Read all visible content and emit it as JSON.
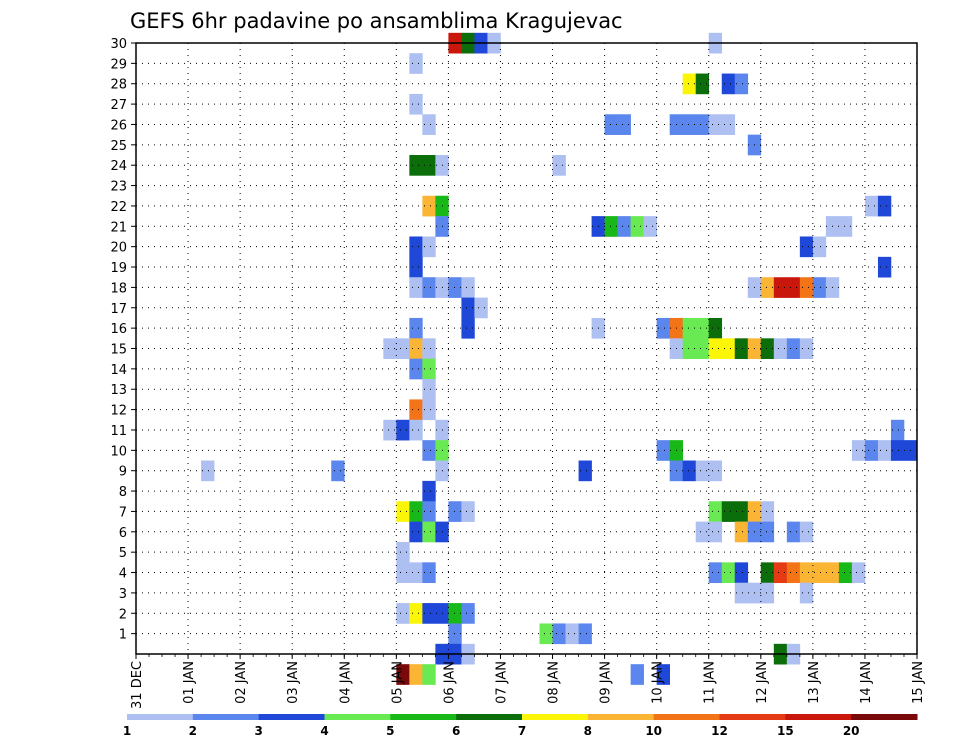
{
  "chart_data": {
    "type": "heatmap",
    "title": "GEFS 6hr padavine po ansamblima Kragujevac",
    "xlabel": "",
    "ylabel": "",
    "x_ticks": [
      "31 DEC",
      "01 JAN",
      "02 JAN",
      "03 JAN",
      "04 JAN",
      "05 JAN",
      "06 JAN",
      "07 JAN",
      "08 JAN",
      "09 JAN",
      "10 JAN",
      "11 JAN",
      "12 JAN",
      "13 JAN",
      "14 JAN",
      "15 JAN"
    ],
    "y_ticks": [
      "1",
      "2",
      "3",
      "4",
      "5",
      "6",
      "7",
      "8",
      "9",
      "10",
      "11",
      "12",
      "13",
      "14",
      "15",
      "16",
      "17",
      "18",
      "19",
      "20",
      "21",
      "22",
      "23",
      "24",
      "25",
      "26",
      "27",
      "28",
      "29",
      "30"
    ],
    "x_unit": "6-hour step (4 per day, 60 steps)",
    "grid": true,
    "levels": [
      {
        "label": "1",
        "color": "#aebff2"
      },
      {
        "label": "2",
        "color": "#5b86ee"
      },
      {
        "label": "3",
        "color": "#1f48d9"
      },
      {
        "label": "4",
        "color": "#69ea52"
      },
      {
        "label": "5",
        "color": "#18b818"
      },
      {
        "label": "6",
        "color": "#0b6e0b"
      },
      {
        "label": "7",
        "color": "#fbf608"
      },
      {
        "label": "8",
        "color": "#fbb534"
      },
      {
        "label": "10",
        "color": "#f37417"
      },
      {
        "label": "12",
        "color": "#e43b14"
      },
      {
        "label": "15",
        "color": "#c9170c"
      },
      {
        "label": "20",
        "color": "#7a0a0a"
      }
    ],
    "cells": [
      {
        "m": 30,
        "t": 24,
        "c": 10
      },
      {
        "m": 30,
        "t": 25,
        "c": 5
      },
      {
        "m": 30,
        "t": 26,
        "c": 2
      },
      {
        "m": 30,
        "t": 27,
        "c": 0
      },
      {
        "m": 30,
        "t": 44,
        "c": 0
      },
      {
        "m": 29,
        "t": 21,
        "c": 0
      },
      {
        "m": 28,
        "t": 42,
        "c": 6
      },
      {
        "m": 28,
        "t": 43,
        "c": 5
      },
      {
        "m": 28,
        "t": 45,
        "c": 2
      },
      {
        "m": 28,
        "t": 46,
        "c": 1
      },
      {
        "m": 27,
        "t": 21,
        "c": 0
      },
      {
        "m": 26,
        "t": 22,
        "c": 0
      },
      {
        "m": 26,
        "t": 36,
        "c": 1
      },
      {
        "m": 26,
        "t": 37,
        "c": 1
      },
      {
        "m": 26,
        "t": 41,
        "c": 1
      },
      {
        "m": 26,
        "t": 42,
        "c": 1
      },
      {
        "m": 26,
        "t": 43,
        "c": 1
      },
      {
        "m": 26,
        "t": 44,
        "c": 0
      },
      {
        "m": 26,
        "t": 45,
        "c": 0
      },
      {
        "m": 25,
        "t": 47,
        "c": 1
      },
      {
        "m": 24,
        "t": 21,
        "c": 5
      },
      {
        "m": 24,
        "t": 22,
        "c": 5
      },
      {
        "m": 24,
        "t": 23,
        "c": 0
      },
      {
        "m": 24,
        "t": 32,
        "c": 0
      },
      {
        "m": 22,
        "t": 22,
        "c": 7
      },
      {
        "m": 22,
        "t": 23,
        "c": 4
      },
      {
        "m": 22,
        "t": 56,
        "c": 0
      },
      {
        "m": 22,
        "t": 57,
        "c": 2
      },
      {
        "m": 21,
        "t": 23,
        "c": 1
      },
      {
        "m": 21,
        "t": 35,
        "c": 2
      },
      {
        "m": 21,
        "t": 36,
        "c": 4
      },
      {
        "m": 21,
        "t": 37,
        "c": 1
      },
      {
        "m": 21,
        "t": 38,
        "c": 3
      },
      {
        "m": 21,
        "t": 39,
        "c": 0
      },
      {
        "m": 21,
        "t": 53,
        "c": 0
      },
      {
        "m": 21,
        "t": 54,
        "c": 0
      },
      {
        "m": 20,
        "t": 21,
        "c": 2
      },
      {
        "m": 20,
        "t": 22,
        "c": 0
      },
      {
        "m": 20,
        "t": 51,
        "c": 2
      },
      {
        "m": 20,
        "t": 52,
        "c": 0
      },
      {
        "m": 19,
        "t": 21,
        "c": 2
      },
      {
        "m": 19,
        "t": 57,
        "c": 2
      },
      {
        "m": 18,
        "t": 21,
        "c": 0
      },
      {
        "m": 18,
        "t": 22,
        "c": 1
      },
      {
        "m": 18,
        "t": 23,
        "c": 0
      },
      {
        "m": 18,
        "t": 24,
        "c": 1
      },
      {
        "m": 18,
        "t": 25,
        "c": 0
      },
      {
        "m": 18,
        "t": 47,
        "c": 0
      },
      {
        "m": 18,
        "t": 48,
        "c": 7
      },
      {
        "m": 18,
        "t": 49,
        "c": 10
      },
      {
        "m": 18,
        "t": 50,
        "c": 10
      },
      {
        "m": 18,
        "t": 51,
        "c": 8
      },
      {
        "m": 18,
        "t": 52,
        "c": 1
      },
      {
        "m": 18,
        "t": 53,
        "c": 0
      },
      {
        "m": 17,
        "t": 25,
        "c": 2
      },
      {
        "m": 17,
        "t": 26,
        "c": 0
      },
      {
        "m": 16,
        "t": 21,
        "c": 1
      },
      {
        "m": 16,
        "t": 25,
        "c": 2
      },
      {
        "m": 16,
        "t": 35,
        "c": 0
      },
      {
        "m": 16,
        "t": 40,
        "c": 1
      },
      {
        "m": 16,
        "t": 41,
        "c": 8
      },
      {
        "m": 16,
        "t": 42,
        "c": 3
      },
      {
        "m": 16,
        "t": 43,
        "c": 3
      },
      {
        "m": 16,
        "t": 44,
        "c": 5
      },
      {
        "m": 15,
        "t": 19,
        "c": 0
      },
      {
        "m": 15,
        "t": 20,
        "c": 0
      },
      {
        "m": 15,
        "t": 21,
        "c": 7
      },
      {
        "m": 15,
        "t": 22,
        "c": 0
      },
      {
        "m": 15,
        "t": 41,
        "c": 0
      },
      {
        "m": 15,
        "t": 42,
        "c": 3
      },
      {
        "m": 15,
        "t": 43,
        "c": 3
      },
      {
        "m": 15,
        "t": 44,
        "c": 6
      },
      {
        "m": 15,
        "t": 45,
        "c": 6
      },
      {
        "m": 15,
        "t": 46,
        "c": 5
      },
      {
        "m": 15,
        "t": 47,
        "c": 7
      },
      {
        "m": 15,
        "t": 48,
        "c": 5
      },
      {
        "m": 15,
        "t": 49,
        "c": 0
      },
      {
        "m": 15,
        "t": 50,
        "c": 1
      },
      {
        "m": 15,
        "t": 51,
        "c": 0
      },
      {
        "m": 14,
        "t": 21,
        "c": 1
      },
      {
        "m": 14,
        "t": 22,
        "c": 3
      },
      {
        "m": 13,
        "t": 22,
        "c": 0
      },
      {
        "m": 12,
        "t": 21,
        "c": 8
      },
      {
        "m": 12,
        "t": 22,
        "c": 0
      },
      {
        "m": 11,
        "t": 19,
        "c": 0
      },
      {
        "m": 11,
        "t": 20,
        "c": 2
      },
      {
        "m": 11,
        "t": 21,
        "c": 0
      },
      {
        "m": 11,
        "t": 23,
        "c": 0
      },
      {
        "m": 11,
        "t": 58,
        "c": 1
      },
      {
        "m": 10,
        "t": 22,
        "c": 1
      },
      {
        "m": 10,
        "t": 23,
        "c": 3
      },
      {
        "m": 10,
        "t": 40,
        "c": 1
      },
      {
        "m": 10,
        "t": 41,
        "c": 4
      },
      {
        "m": 10,
        "t": 55,
        "c": 0
      },
      {
        "m": 10,
        "t": 56,
        "c": 1
      },
      {
        "m": 10,
        "t": 57,
        "c": 0
      },
      {
        "m": 10,
        "t": 58,
        "c": 2
      },
      {
        "m": 10,
        "t": 59,
        "c": 2
      },
      {
        "m": 9,
        "t": 5,
        "c": 0
      },
      {
        "m": 9,
        "t": 15,
        "c": 1
      },
      {
        "m": 9,
        "t": 23,
        "c": 0
      },
      {
        "m": 9,
        "t": 34,
        "c": 2
      },
      {
        "m": 9,
        "t": 41,
        "c": 1
      },
      {
        "m": 9,
        "t": 42,
        "c": 2
      },
      {
        "m": 9,
        "t": 43,
        "c": 0
      },
      {
        "m": 9,
        "t": 44,
        "c": 0
      },
      {
        "m": 8,
        "t": 22,
        "c": 2
      },
      {
        "m": 7,
        "t": 20,
        "c": 6
      },
      {
        "m": 7,
        "t": 21,
        "c": 4
      },
      {
        "m": 7,
        "t": 22,
        "c": 1
      },
      {
        "m": 7,
        "t": 24,
        "c": 1
      },
      {
        "m": 7,
        "t": 25,
        "c": 0
      },
      {
        "m": 7,
        "t": 44,
        "c": 3
      },
      {
        "m": 7,
        "t": 45,
        "c": 5
      },
      {
        "m": 7,
        "t": 46,
        "c": 5
      },
      {
        "m": 7,
        "t": 47,
        "c": 7
      },
      {
        "m": 7,
        "t": 48,
        "c": 0
      },
      {
        "m": 6,
        "t": 21,
        "c": 2
      },
      {
        "m": 6,
        "t": 22,
        "c": 3
      },
      {
        "m": 6,
        "t": 23,
        "c": 2
      },
      {
        "m": 6,
        "t": 43,
        "c": 0
      },
      {
        "m": 6,
        "t": 44,
        "c": 0
      },
      {
        "m": 6,
        "t": 46,
        "c": 7
      },
      {
        "m": 6,
        "t": 47,
        "c": 1
      },
      {
        "m": 6,
        "t": 48,
        "c": 1
      },
      {
        "m": 6,
        "t": 50,
        "c": 1
      },
      {
        "m": 6,
        "t": 51,
        "c": 0
      },
      {
        "m": 5,
        "t": 20,
        "c": 0
      },
      {
        "m": 4,
        "t": 20,
        "c": 0
      },
      {
        "m": 4,
        "t": 21,
        "c": 0
      },
      {
        "m": 4,
        "t": 22,
        "c": 1
      },
      {
        "m": 4,
        "t": 44,
        "c": 1
      },
      {
        "m": 4,
        "t": 45,
        "c": 3
      },
      {
        "m": 4,
        "t": 46,
        "c": 2
      },
      {
        "m": 4,
        "t": 48,
        "c": 5
      },
      {
        "m": 4,
        "t": 49,
        "c": 9
      },
      {
        "m": 4,
        "t": 50,
        "c": 8
      },
      {
        "m": 4,
        "t": 51,
        "c": 7
      },
      {
        "m": 4,
        "t": 52,
        "c": 7
      },
      {
        "m": 4,
        "t": 53,
        "c": 7
      },
      {
        "m": 4,
        "t": 54,
        "c": 4
      },
      {
        "m": 4,
        "t": 55,
        "c": 0
      },
      {
        "m": 3,
        "t": 46,
        "c": 0
      },
      {
        "m": 3,
        "t": 47,
        "c": 0
      },
      {
        "m": 3,
        "t": 48,
        "c": 0
      },
      {
        "m": 3,
        "t": 51,
        "c": 0
      },
      {
        "m": 2,
        "t": 20,
        "c": 0
      },
      {
        "m": 2,
        "t": 21,
        "c": 6
      },
      {
        "m": 2,
        "t": 22,
        "c": 2
      },
      {
        "m": 2,
        "t": 23,
        "c": 2
      },
      {
        "m": 2,
        "t": 24,
        "c": 4
      },
      {
        "m": 2,
        "t": 25,
        "c": 1
      },
      {
        "m": 1,
        "t": 24,
        "c": 1
      },
      {
        "m": 1,
        "t": 31,
        "c": 3
      },
      {
        "m": 1,
        "t": 32,
        "c": 1
      },
      {
        "m": 1,
        "t": 33,
        "c": 0
      },
      {
        "m": 1,
        "t": 34,
        "c": 1
      },
      {
        "m": 0,
        "t": 23,
        "c": 2
      },
      {
        "m": 0,
        "t": 24,
        "c": 2
      },
      {
        "m": 0,
        "t": 25,
        "c": 0
      },
      {
        "m": 0,
        "t": 49,
        "c": 5
      },
      {
        "m": 0,
        "t": 50,
        "c": 0
      },
      {
        "m": -1,
        "t": 20,
        "c": 11
      },
      {
        "m": -1,
        "t": 21,
        "c": 7
      },
      {
        "m": -1,
        "t": 22,
        "c": 3
      },
      {
        "m": -1,
        "t": 38,
        "c": 1
      },
      {
        "m": -1,
        "t": 40,
        "c": 2
      }
    ]
  }
}
